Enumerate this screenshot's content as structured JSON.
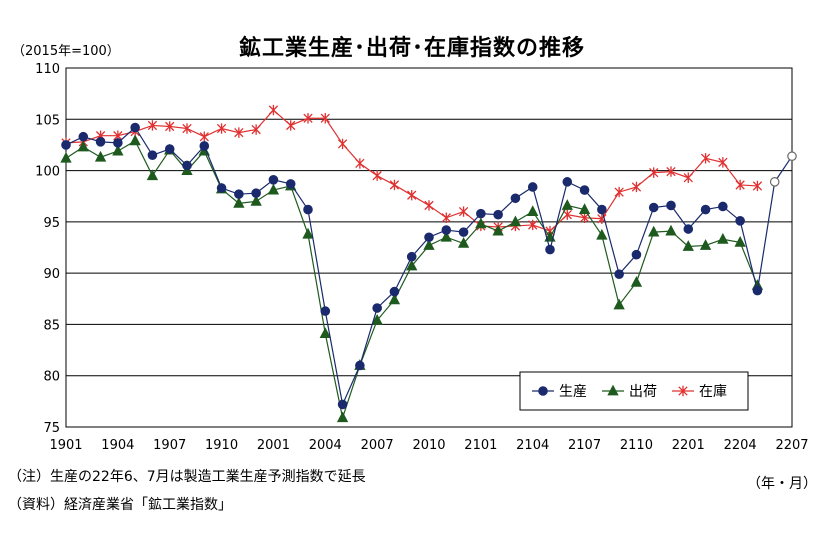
{
  "chart_data": {
    "type": "line",
    "title": "鉱工業生産･出荷･在庫指数の推移",
    "unit_label": "（2015年=100）",
    "xlabel": "（年・月）",
    "ylabel": "",
    "ylim": [
      75,
      110
    ],
    "yticks": [
      75,
      80,
      85,
      90,
      95,
      100,
      105,
      110
    ],
    "x_tick_labels": [
      "1901",
      "1904",
      "1907",
      "1910",
      "2001",
      "2004",
      "2007",
      "2010",
      "2101",
      "2104",
      "2107",
      "2110",
      "2201",
      "2204",
      "2207"
    ],
    "x_tick_positions": [
      0,
      3,
      6,
      9,
      12,
      15,
      18,
      21,
      24,
      27,
      30,
      33,
      36,
      39,
      42
    ],
    "grid": true,
    "legend_position": "bottom-right",
    "series": [
      {
        "name": "生産",
        "color": "#1a2a6c",
        "marker": "circle",
        "values": [
          102.5,
          103.3,
          102.8,
          102.7,
          104.2,
          101.5,
          102.1,
          100.5,
          102.4,
          98.3,
          97.7,
          97.8,
          99.1,
          98.7,
          96.2,
          86.3,
          77.2,
          81.0,
          86.6,
          88.2,
          91.6,
          93.5,
          94.2,
          94.0,
          95.8,
          95.7,
          97.3,
          98.4,
          92.3,
          98.9,
          98.1,
          96.2,
          89.9,
          91.8,
          96.4,
          96.6,
          94.3,
          96.2,
          96.5,
          95.1,
          88.3
        ],
        "forecast": [
          98.9,
          101.4
        ]
      },
      {
        "name": "出荷",
        "color": "#1e5a1e",
        "marker": "triangle",
        "values": [
          101.2,
          102.3,
          101.3,
          101.9,
          102.9,
          99.5,
          102.0,
          100.0,
          101.9,
          98.2,
          96.8,
          97.0,
          98.1,
          98.5,
          93.8,
          84.1,
          75.9,
          81.0,
          85.4,
          87.4,
          90.7,
          92.7,
          93.5,
          92.9,
          94.8,
          94.1,
          95.0,
          96.0,
          93.5,
          96.6,
          96.2,
          93.7,
          86.9,
          89.1,
          94.0,
          94.1,
          92.6,
          92.7,
          93.3,
          93.0,
          88.8
        ]
      },
      {
        "name": "在庫",
        "color": "#e03030",
        "marker": "asterisk",
        "values": [
          102.7,
          102.8,
          103.4,
          103.4,
          103.8,
          104.4,
          104.3,
          104.1,
          103.3,
          104.1,
          103.7,
          104.0,
          105.9,
          104.4,
          105.1,
          105.1,
          102.6,
          100.7,
          99.5,
          98.6,
          97.6,
          96.6,
          95.4,
          96.0,
          94.6,
          94.5,
          94.6,
          94.7,
          94.1,
          95.7,
          95.4,
          95.3,
          97.9,
          98.4,
          99.8,
          99.9,
          99.3,
          101.2,
          100.8,
          98.6,
          98.5
        ]
      }
    ]
  },
  "notes": {
    "note1": "（注）生産の22年6、7月は製造工業生産予測指数で延長",
    "note2": "（資料）経済産業省「鉱工業指数」"
  }
}
